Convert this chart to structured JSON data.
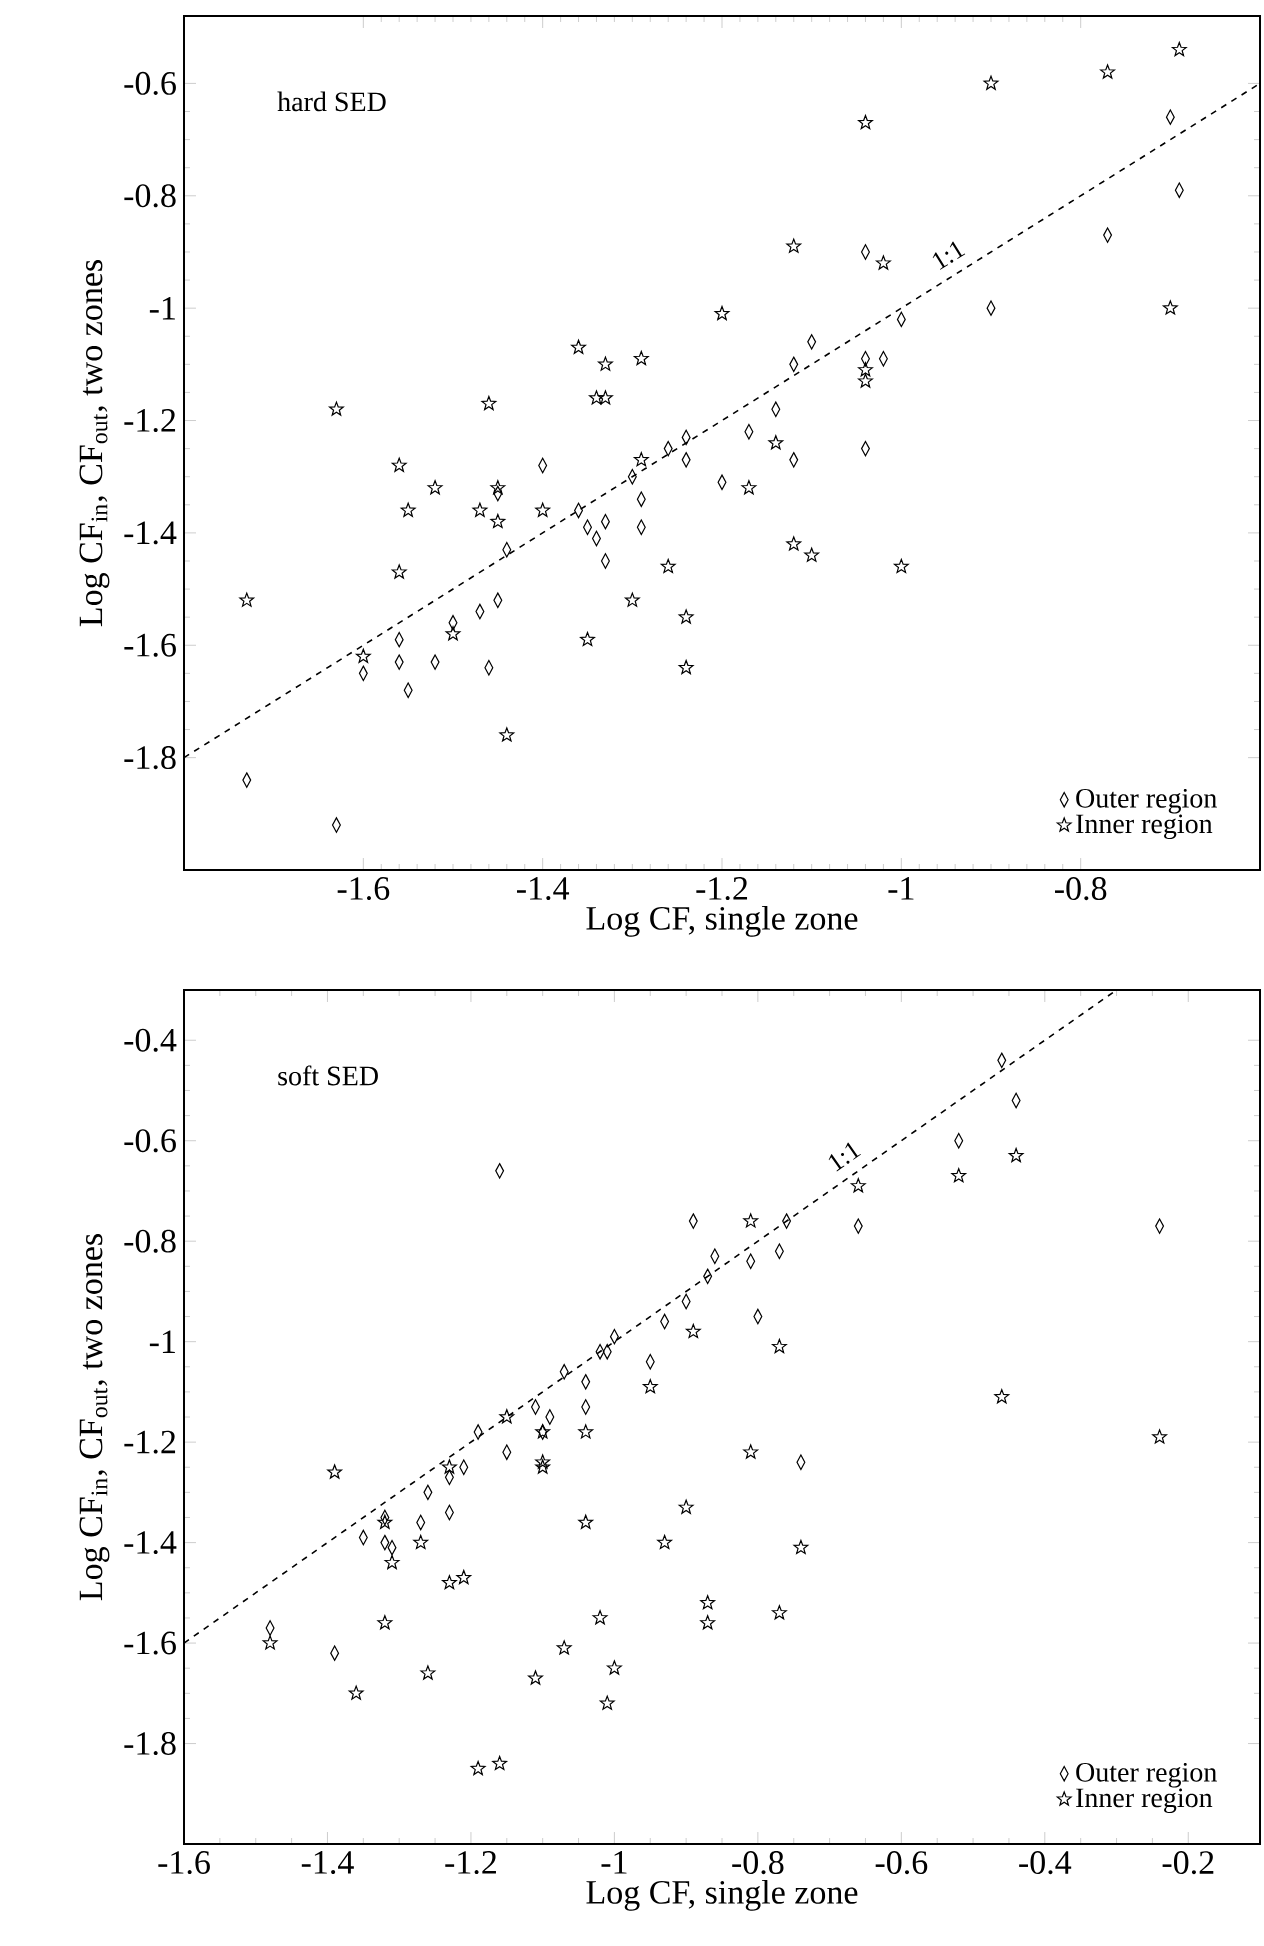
{
  "chart_data": [
    {
      "type": "scatter",
      "xlabel": "Log CF, single zone",
      "ylabel": "Log CF$_{in}$, CF$_{out}$, two zones",
      "annotations": [
        "hard SED"
      ],
      "xlim": [
        -1.8,
        -0.6
      ],
      "ylim": [
        -2.0,
        -0.48
      ],
      "xticks": [
        -1.6,
        -1.4,
        -1.2,
        -1,
        -0.8
      ],
      "yticks": [
        -1.8,
        -1.6,
        -1.4,
        -1.2,
        -1,
        -0.8,
        -0.6
      ],
      "legend": "bottom right",
      "series": [
        {
          "name": "Outer region",
          "color": "#000000",
          "marker": "diamond",
          "x": [
            -1.73,
            -1.63,
            -1.6,
            -1.56,
            -1.56,
            -1.55,
            -1.52,
            -1.5,
            -1.47,
            -1.45,
            -1.46,
            -1.45,
            -1.44,
            -1.4,
            -1.36,
            -1.35,
            -1.34,
            -1.33,
            -1.33,
            -1.3,
            -1.29,
            -1.29,
            -1.26,
            -1.24,
            -1.24,
            -1.2,
            -1.17,
            -1.14,
            -1.12,
            -1.12,
            -1.1,
            -1.04,
            -1.04,
            -1.04,
            -1.02,
            -1.0,
            -0.9,
            -0.77,
            -0.7,
            -0.69
          ],
          "values": [
            -1.84,
            -1.92,
            -1.65,
            -1.59,
            -1.63,
            -1.68,
            -1.63,
            -1.56,
            -1.54,
            -1.52,
            -1.64,
            -1.33,
            -1.43,
            -1.28,
            -1.36,
            -1.39,
            -1.41,
            -1.38,
            -1.45,
            -1.3,
            -1.34,
            -1.39,
            -1.25,
            -1.23,
            -1.27,
            -1.31,
            -1.22,
            -1.18,
            -1.27,
            -1.1,
            -1.06,
            -0.9,
            -1.09,
            -1.25,
            -1.09,
            -1.02,
            -1.0,
            -0.87,
            -0.66,
            -0.79
          ]
        },
        {
          "name": "Inner region",
          "color": "#000000",
          "marker": "star",
          "x": [
            -1.73,
            -1.63,
            -1.6,
            -1.56,
            -1.55,
            -1.56,
            -1.52,
            -1.5,
            -1.47,
            -1.45,
            -1.46,
            -1.45,
            -1.44,
            -1.4,
            -1.36,
            -1.33,
            -1.34,
            -1.33,
            -1.35,
            -1.29,
            -1.29,
            -1.3,
            -1.26,
            -1.24,
            -1.24,
            -1.2,
            -1.17,
            -1.14,
            -1.12,
            -1.12,
            -1.1,
            -1.04,
            -1.04,
            -1.04,
            -1.02,
            -1.0,
            -0.9,
            -0.77,
            -0.7,
            -0.69
          ],
          "values": [
            -1.52,
            -1.18,
            -1.62,
            -1.28,
            -1.36,
            -1.47,
            -1.32,
            -1.58,
            -1.36,
            -1.38,
            -1.17,
            -1.32,
            -1.76,
            -1.36,
            -1.07,
            -1.1,
            -1.16,
            -1.16,
            -1.59,
            -1.09,
            -1.27,
            -1.52,
            -1.46,
            -1.55,
            -1.64,
            -1.01,
            -1.32,
            -1.24,
            -0.89,
            -1.42,
            -1.44,
            -1.11,
            -1.13,
            -0.67,
            -0.92,
            -1.46,
            -0.6,
            -0.58,
            -1.0,
            -0.54
          ]
        },
        {
          "name": "1:1",
          "type": "line",
          "color": "#000000",
          "line_style": "dashed",
          "marker": "none",
          "x": [
            -1.8,
            -0.6
          ],
          "values": [
            -1.8,
            -0.6
          ]
        }
      ]
    },
    {
      "type": "scatter",
      "xlabel": "Log CF, single zone",
      "ylabel": "Log CF$_{in}$, CF$_{out}$, two zones",
      "annotations": [
        "soft SED"
      ],
      "xlim": [
        -1.6,
        -0.1
      ],
      "ylim": [
        -2.0,
        -0.3
      ],
      "xticks": [
        -1.6,
        -1.4,
        -1.2,
        -1,
        -0.8,
        -0.6,
        -0.4,
        -0.2
      ],
      "yticks": [
        -1.8,
        -1.6,
        -1.4,
        -1.2,
        -1,
        -0.8,
        -0.6,
        -0.4
      ],
      "legend": "bottom right",
      "series": [
        {
          "name": "Outer region",
          "color": "#000000",
          "marker": "diamond",
          "x": [
            -1.48,
            -1.39,
            -1.35,
            -1.32,
            -1.32,
            -1.31,
            -1.27,
            -1.26,
            -1.23,
            -1.23,
            -1.21,
            -1.19,
            -1.16,
            -1.15,
            -1.11,
            -1.1,
            -1.09,
            -1.07,
            -1.04,
            -1.04,
            -1.02,
            -1.01,
            -1.0,
            -0.95,
            -0.93,
            -0.9,
            -0.89,
            -0.87,
            -0.86,
            -0.81,
            -0.8,
            -0.77,
            -0.76,
            -0.74,
            -0.66,
            -0.52,
            -0.46,
            -0.44,
            -0.24
          ],
          "values": [
            -1.57,
            -1.62,
            -1.39,
            -1.35,
            -1.4,
            -1.41,
            -1.36,
            -1.3,
            -1.34,
            -1.27,
            -1.25,
            -1.18,
            -0.66,
            -1.22,
            -1.13,
            -1.18,
            -1.15,
            -1.06,
            -1.08,
            -1.13,
            -1.02,
            -1.02,
            -0.99,
            -1.04,
            -0.96,
            -0.92,
            -0.76,
            -0.87,
            -0.83,
            -0.84,
            -0.95,
            -0.82,
            -0.76,
            -1.24,
            -0.77,
            -0.6,
            -0.44,
            -0.52,
            -0.77
          ]
        },
        {
          "name": "Inner region",
          "color": "#000000",
          "marker": "star",
          "x": [
            -1.48,
            -1.39,
            -1.36,
            -1.32,
            -1.31,
            -1.32,
            -1.27,
            -1.26,
            -1.23,
            -1.21,
            -1.23,
            -1.19,
            -1.16,
            -1.15,
            -1.11,
            -1.1,
            -1.1,
            -1.1,
            -1.07,
            -1.04,
            -1.04,
            -1.02,
            -1.0,
            -1.01,
            -0.95,
            -0.93,
            -0.9,
            -0.89,
            -0.87,
            -0.87,
            -0.81,
            -0.81,
            -0.77,
            -0.77,
            -0.74,
            -0.66,
            -0.52,
            -0.46,
            -0.44,
            -0.24
          ],
          "values": [
            -1.6,
            -1.26,
            -1.7,
            -1.36,
            -1.44,
            -1.56,
            -1.4,
            -1.66,
            -1.48,
            -1.47,
            -1.25,
            -1.85,
            -1.84,
            -1.15,
            -1.67,
            -1.24,
            -1.18,
            -1.25,
            -1.61,
            -1.36,
            -1.18,
            -1.55,
            -1.65,
            -1.72,
            -1.09,
            -1.4,
            -1.33,
            -0.98,
            -1.52,
            -1.56,
            -1.22,
            -0.76,
            -1.01,
            -1.54,
            -1.41,
            -0.69,
            -0.67,
            -1.11,
            -0.63,
            -1.19
          ]
        },
        {
          "name": "1:1",
          "type": "line",
          "color": "#000000",
          "line_style": "dashed",
          "marker": "none",
          "x": [
            -1.6,
            -0.3
          ],
          "values": [
            -1.6,
            -0.3
          ]
        }
      ]
    }
  ]
}
